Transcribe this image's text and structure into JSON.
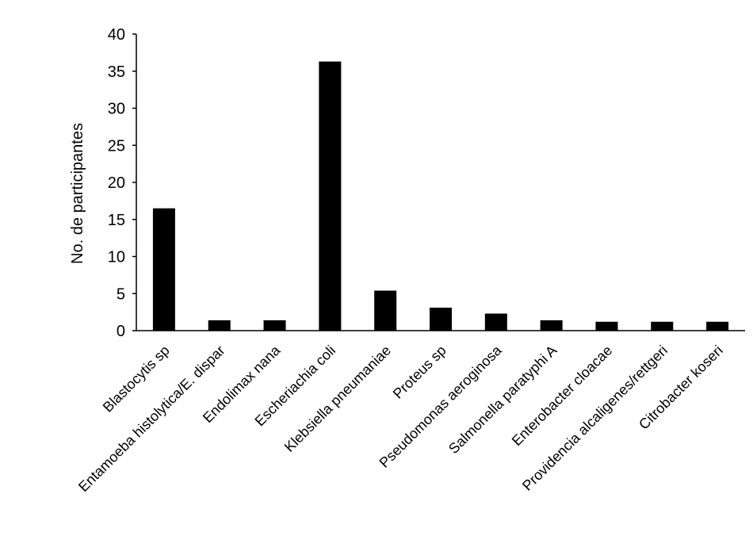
{
  "chart_data": {
    "type": "bar",
    "title": "",
    "xlabel": "",
    "ylabel": "No. de participantes",
    "ylim": [
      0,
      40
    ],
    "yticks": [
      0,
      5,
      10,
      15,
      20,
      25,
      30,
      35,
      40
    ],
    "grid": false,
    "legend": "none",
    "bar_color": "#000000",
    "categories": [
      "Blastocytis sp",
      "Entamoeba histolytica/E. dispar",
      "Endolimax nana",
      "Escheriachia coli",
      "Klebsiella pneumaniae",
      "Proteus sp",
      "Pseudomonas aeroginosa",
      "Salmonella paratyphi A",
      "Enterobacter cloacae",
      "Providencia alcaligenes/rettgeri",
      "Citrobacter koseri"
    ],
    "values": [
      16.5,
      1.4,
      1.4,
      36.3,
      5.4,
      3.1,
      2.3,
      1.4,
      1.2,
      1.2,
      1.2
    ]
  }
}
